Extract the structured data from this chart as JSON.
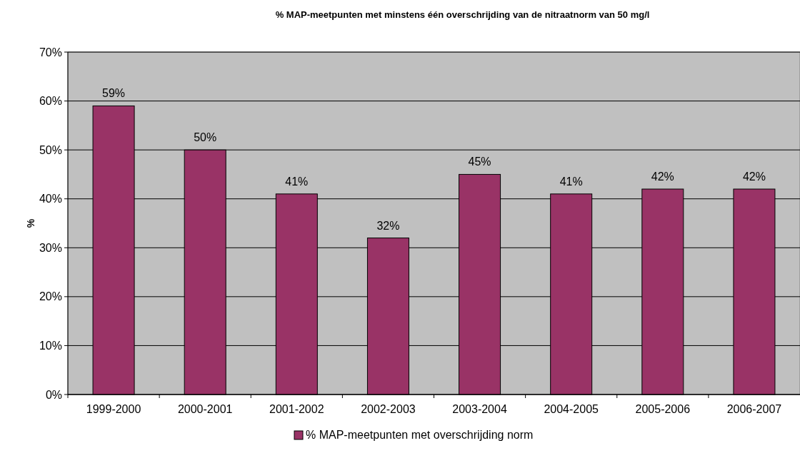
{
  "chart_data": {
    "type": "bar",
    "title": "% MAP-meetpunten met minstens één overschrijding van de nitraatnorm van 50 mg/l",
    "ylabel": "%",
    "categories": [
      "1999-2000",
      "2000-2001",
      "2001-2002",
      "2002-2003",
      "2003-2004",
      "2004-2005",
      "2005-2006",
      "2006-2007"
    ],
    "series": [
      {
        "name": "% MAP-meetpunten met overschrijding norm",
        "color": "#993366",
        "values": [
          59,
          50,
          41,
          32,
          45,
          41,
          42,
          42
        ],
        "value_labels": [
          "59%",
          "50%",
          "41%",
          "32%",
          "45%",
          "41%",
          "42%",
          "42%"
        ]
      }
    ],
    "ylim": [
      0,
      70
    ],
    "yticks": [
      {
        "value": 0,
        "label": "0%"
      },
      {
        "value": 10,
        "label": "10%"
      },
      {
        "value": 20,
        "label": "20%"
      },
      {
        "value": 30,
        "label": "30%"
      },
      {
        "value": 40,
        "label": "40%"
      },
      {
        "value": 50,
        "label": "50%"
      },
      {
        "value": 60,
        "label": "60%"
      },
      {
        "value": 70,
        "label": "70%"
      }
    ],
    "grid": "y",
    "legend": "bottom"
  }
}
